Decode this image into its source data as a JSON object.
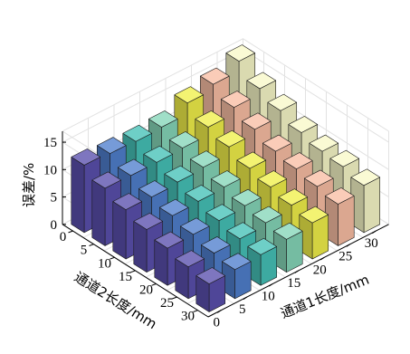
{
  "chart_data": {
    "type": "bar3d",
    "zlabel": "误差/%",
    "x_axis": {
      "label": "通道1长度/mm",
      "ticks": [
        "0",
        "5",
        "10",
        "15",
        "20",
        "25",
        "30"
      ],
      "values": [
        0,
        5,
        10,
        15,
        20,
        25,
        30
      ]
    },
    "y_axis": {
      "label": "通道2长度/mm",
      "ticks": [
        "0",
        "5",
        "10",
        "15",
        "20",
        "25",
        "30"
      ],
      "values": [
        0,
        5,
        10,
        15,
        20,
        25,
        30
      ]
    },
    "z_ticks": [
      "0",
      "5",
      "10",
      "15"
    ],
    "zlim": [
      0,
      17
    ],
    "grid": true,
    "colors_by_x": [
      "#5a4fad",
      "#4f7fcd",
      "#45c1b7",
      "#85d6b8",
      "#f0ef4a",
      "#f9bea4",
      "#f8f8c8"
    ],
    "rows_by_y": [
      {
        "y": 0,
        "values": [
          12.3,
          12.0,
          11.8,
          12.0,
          14.0,
          15.0,
          16.8
        ]
      },
      {
        "y": 5,
        "values": [
          10.5,
          10.4,
          10.4,
          10.6,
          12.0,
          13.2,
          14.2
        ]
      },
      {
        "y": 10,
        "values": [
          9.0,
          8.9,
          9.2,
          9.5,
          10.8,
          11.6,
          12.6
        ]
      },
      {
        "y": 15,
        "values": [
          7.8,
          7.9,
          8.1,
          8.3,
          9.3,
          10.0,
          11.0
        ]
      },
      {
        "y": 20,
        "values": [
          6.8,
          6.9,
          7.0,
          7.3,
          8.3,
          9.2,
          10.0
        ]
      },
      {
        "y": 25,
        "values": [
          5.8,
          5.9,
          6.1,
          6.6,
          7.4,
          8.4,
          9.6
        ]
      },
      {
        "y": 30,
        "values": [
          5.1,
          5.3,
          5.6,
          6.0,
          6.6,
          7.6,
          8.6
        ]
      }
    ]
  }
}
